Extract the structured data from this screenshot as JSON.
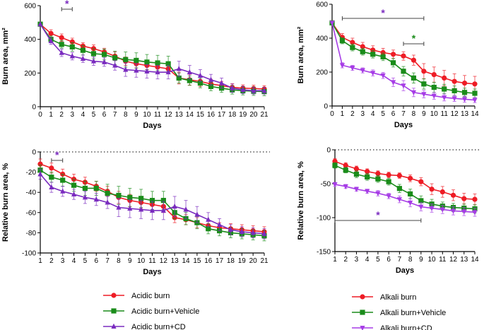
{
  "colors": {
    "red": "#ee1c25",
    "green": "#1a8c1a",
    "purple": "#7a2bbf",
    "magenta": "#a63ce6"
  },
  "legend_left": [
    {
      "label": "Acidic burn",
      "color": "#ee1c25",
      "marker": "circle"
    },
    {
      "label": "Acidic burn+Vehicle",
      "color": "#1a8c1a",
      "marker": "square"
    },
    {
      "label": "Acidic burn+CD",
      "color": "#7a2bbf",
      "marker": "triangle-up"
    }
  ],
  "legend_right": [
    {
      "label": "Alkali burn",
      "color": "#ee1c25",
      "marker": "circle"
    },
    {
      "label": "Alkali burn+Vehicle",
      "color": "#1a8c1a",
      "marker": "square"
    },
    {
      "label": "Alkali burn+CD",
      "color": "#a63ce6",
      "marker": "triangle-down"
    }
  ],
  "chart_data": [
    {
      "type": "line",
      "xlabel": "Days",
      "ylabel": "Burn area, mm²",
      "xlim": [
        0,
        21
      ],
      "ylim": [
        0,
        600
      ],
      "xticks": [
        "0",
        "1",
        "2",
        "3",
        "4",
        "5",
        "6",
        "7",
        "8",
        "9",
        "10",
        "11",
        "12",
        "13",
        "14",
        "15",
        "16",
        "17",
        "18",
        "19",
        "20",
        "21"
      ],
      "yticks": [
        "0",
        "200",
        "400",
        "600"
      ],
      "x": [
        0,
        1,
        2,
        3,
        4,
        5,
        6,
        7,
        8,
        9,
        10,
        11,
        12,
        13,
        14,
        15,
        16,
        17,
        18,
        19,
        20,
        21
      ],
      "series": [
        {
          "name": "Acidic burn",
          "values": [
            490,
            435,
            410,
            385,
            360,
            345,
            325,
            300,
            270,
            255,
            245,
            235,
            225,
            170,
            160,
            150,
            135,
            125,
            115,
            110,
            108,
            105
          ],
          "errors": [
            0,
            22,
            22,
            22,
            20,
            22,
            22,
            25,
            25,
            25,
            25,
            28,
            28,
            35,
            32,
            30,
            28,
            25,
            22,
            20,
            20,
            20
          ]
        },
        {
          "name": "Acidic burn+Vehicle",
          "values": [
            490,
            400,
            370,
            355,
            335,
            315,
            310,
            290,
            280,
            275,
            265,
            260,
            255,
            170,
            155,
            140,
            120,
            110,
            100,
            95,
            92,
            90
          ],
          "errors": [
            0,
            20,
            22,
            25,
            28,
            30,
            32,
            40,
            45,
            45,
            45,
            45,
            45,
            30,
            28,
            28,
            25,
            25,
            25,
            25,
            25,
            25
          ]
        },
        {
          "name": "Acidic burn+CD",
          "values": [
            490,
            390,
            320,
            300,
            285,
            270,
            265,
            245,
            220,
            215,
            210,
            205,
            205,
            225,
            205,
            185,
            160,
            140,
            110,
            100,
            95,
            95
          ],
          "errors": [
            0,
            20,
            22,
            22,
            22,
            25,
            25,
            28,
            40,
            40,
            40,
            40,
            40,
            45,
            40,
            35,
            32,
            30,
            25,
            22,
            20,
            20
          ]
        }
      ],
      "annotations": [
        {
          "text": "*",
          "x_from": 2,
          "x_to": 3,
          "color": "#7a2bbf"
        }
      ]
    },
    {
      "type": "line",
      "xlabel": "Days",
      "ylabel": "Burn area, mm²",
      "xlim": [
        0,
        14
      ],
      "ylim": [
        0,
        600
      ],
      "xticks": [
        "0",
        "1",
        "2",
        "3",
        "4",
        "5",
        "6",
        "7",
        "8",
        "9",
        "10",
        "11",
        "12",
        "13",
        "14"
      ],
      "yticks": [
        "0",
        "200",
        "400",
        "600"
      ],
      "x": [
        0,
        1,
        2,
        3,
        4,
        5,
        6,
        7,
        8,
        9,
        10,
        11,
        12,
        13,
        14
      ],
      "series": [
        {
          "name": "Alkali burn",
          "values": [
            490,
            405,
            375,
            350,
            330,
            315,
            305,
            295,
            270,
            205,
            185,
            165,
            145,
            135,
            130
          ],
          "errors": [
            0,
            22,
            25,
            25,
            25,
            25,
            25,
            25,
            30,
            45,
            45,
            45,
            45,
            45,
            45
          ]
        },
        {
          "name": "Alkali burn+Vehicle",
          "values": [
            490,
            385,
            345,
            320,
            305,
            290,
            255,
            205,
            165,
            130,
            110,
            100,
            90,
            80,
            75
          ],
          "errors": [
            0,
            18,
            20,
            20,
            22,
            22,
            25,
            28,
            30,
            30,
            30,
            28,
            28,
            25,
            25
          ]
        },
        {
          "name": "Alkali burn+CD",
          "values": [
            490,
            240,
            225,
            210,
            195,
            180,
            140,
            120,
            80,
            70,
            60,
            50,
            45,
            40,
            35
          ],
          "errors": [
            0,
            15,
            15,
            15,
            18,
            18,
            25,
            30,
            25,
            22,
            20,
            20,
            18,
            18,
            15
          ]
        }
      ],
      "annotations": [
        {
          "text": "*",
          "x_from": 1,
          "x_to": 9,
          "color": "#7a2bbf"
        },
        {
          "text": "*",
          "x_from": 7,
          "x_to": 9,
          "color": "#1a8c1a"
        }
      ]
    },
    {
      "type": "line",
      "xlabel": "Days",
      "ylabel": "Relative burn area, %",
      "xlim": [
        1,
        21
      ],
      "ylim": [
        -100,
        0
      ],
      "xticks": [
        "1",
        "2",
        "3",
        "4",
        "5",
        "6",
        "7",
        "8",
        "9",
        "10",
        "11",
        "12",
        "13",
        "14",
        "15",
        "16",
        "17",
        "18",
        "19",
        "20",
        "21"
      ],
      "yticks": [
        "0",
        "-20",
        "-40",
        "-60",
        "-80",
        "-100"
      ],
      "x": [
        1,
        2,
        3,
        4,
        5,
        6,
        7,
        8,
        9,
        10,
        11,
        12,
        13,
        14,
        15,
        16,
        17,
        18,
        19,
        20,
        21
      ],
      "series": [
        {
          "name": "Acidic burn",
          "values": [
            -12,
            -16,
            -22,
            -27,
            -30,
            -34,
            -39,
            -45,
            -48,
            -50,
            -52,
            -54,
            -65,
            -67,
            -70,
            -73,
            -75,
            -76,
            -77,
            -78,
            -79
          ],
          "errors": [
            5,
            5,
            5,
            5,
            5,
            5,
            5,
            6,
            6,
            6,
            6,
            6,
            5,
            5,
            5,
            5,
            5,
            5,
            5,
            5,
            5
          ]
        },
        {
          "name": "Acidic burn+Vehicle",
          "values": [
            -18,
            -25,
            -28,
            -33,
            -36,
            -36,
            -41,
            -43,
            -45,
            -46,
            -48,
            -48,
            -60,
            -66,
            -70,
            -76,
            -78,
            -80,
            -81,
            -82,
            -83
          ],
          "errors": [
            5,
            5,
            6,
            6,
            7,
            7,
            9,
            9,
            9,
            9,
            9,
            9,
            6,
            6,
            6,
            5,
            5,
            5,
            5,
            5,
            5
          ]
        },
        {
          "name": "Acidic burn+CD",
          "values": [
            -22,
            -35,
            -39,
            -42,
            -45,
            -47,
            -50,
            -55,
            -56,
            -57,
            -58,
            -58,
            -54,
            -57,
            -62,
            -67,
            -72,
            -77,
            -79,
            -80,
            -81
          ],
          "errors": [
            5,
            5,
            5,
            5,
            6,
            6,
            6,
            9,
            9,
            9,
            9,
            9,
            10,
            9,
            8,
            7,
            6,
            5,
            5,
            5,
            5
          ]
        }
      ],
      "annotations": [
        {
          "text": "*",
          "x_from": 2,
          "x_to": 3,
          "color": "#7a2bbf"
        }
      ]
    },
    {
      "type": "line",
      "xlabel": "Days",
      "ylabel": "Relative burn area, %",
      "xlim": [
        1,
        14
      ],
      "ylim": [
        -150,
        0
      ],
      "xticks": [
        "1",
        "2",
        "3",
        "4",
        "5",
        "6",
        "7",
        "8",
        "9",
        "10",
        "11",
        "12",
        "13",
        "14"
      ],
      "yticks": [
        "0",
        "-50",
        "-100",
        "-150"
      ],
      "x": [
        1,
        2,
        3,
        4,
        5,
        6,
        7,
        8,
        9,
        10,
        11,
        12,
        13,
        14
      ],
      "series": [
        {
          "name": "Alkali burn",
          "values": [
            -17,
            -23,
            -28,
            -32,
            -35,
            -37,
            -38,
            -42,
            -47,
            -58,
            -62,
            -67,
            -72,
            -73
          ],
          "errors": [
            4,
            4,
            4,
            4,
            4,
            4,
            4,
            5,
            6,
            8,
            8,
            8,
            8,
            8
          ]
        },
        {
          "name": "Alkali burn+Vehicle",
          "values": [
            -23,
            -30,
            -36,
            -40,
            -43,
            -47,
            -57,
            -65,
            -75,
            -80,
            -83,
            -85,
            -86,
            -87
          ],
          "errors": [
            4,
            4,
            5,
            5,
            5,
            5,
            6,
            7,
            7,
            7,
            6,
            6,
            6,
            6
          ]
        },
        {
          "name": "Alkali burn+CD",
          "values": [
            -51,
            -54,
            -58,
            -61,
            -64,
            -68,
            -73,
            -78,
            -84,
            -86,
            -88,
            -90,
            -91,
            -92
          ],
          "errors": [
            3,
            3,
            3,
            3,
            4,
            4,
            5,
            6,
            6,
            6,
            6,
            6,
            6,
            6
          ]
        }
      ],
      "annotations": [
        {
          "text": "*",
          "x_from": 1,
          "x_to": 9,
          "color": "#7a2bbf"
        }
      ]
    }
  ]
}
